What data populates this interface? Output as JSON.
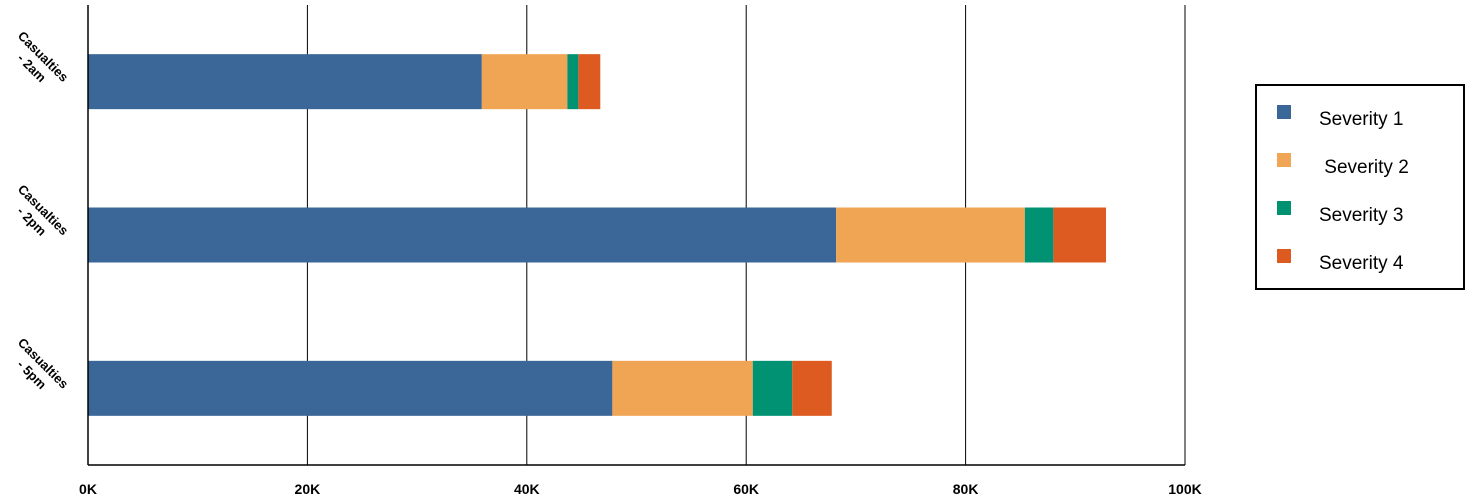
{
  "chart_data": {
    "type": "bar",
    "orientation": "horizontal",
    "stacked": true,
    "categories": [
      "Casualties - 2am",
      "Casualties - 2pm",
      "Casualties - 5pm"
    ],
    "category_lines": [
      [
        "Casualties",
        "- 2am"
      ],
      [
        "Casualties",
        "- 2pm"
      ],
      [
        "Casualties",
        "- 5pm"
      ]
    ],
    "series": [
      {
        "name": "Severity 1",
        "legend_label": "Severity 1",
        "color": "#3b6698",
        "values": [
          35900,
          68200,
          47800
        ]
      },
      {
        "name": "Severity 2",
        "legend_label": " Severity 2",
        "color": "#efa553",
        "values": [
          7800,
          17200,
          12800
        ]
      },
      {
        "name": "Severity 3",
        "legend_label": "Severity 3",
        "color": "#009273",
        "values": [
          1000,
          2600,
          3600
        ]
      },
      {
        "name": "Severity 4",
        "legend_label": "Severity 4",
        "color": "#dd5a20",
        "values": [
          2000,
          4800,
          3600
        ]
      }
    ],
    "xlim": [
      0,
      100000
    ],
    "x_ticks": [
      0,
      20000,
      40000,
      60000,
      80000,
      100000
    ],
    "x_tick_labels": [
      "0K",
      "20K",
      "40K",
      "60K",
      "80K",
      "100K"
    ],
    "xlabel": "",
    "ylabel": "",
    "grid": "vertical",
    "legend_position": "right"
  }
}
